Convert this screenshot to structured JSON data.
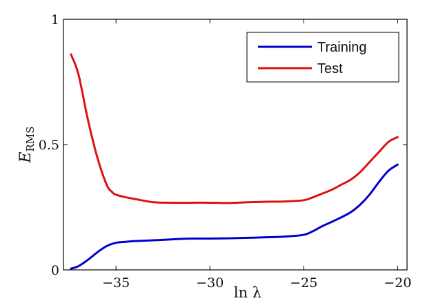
{
  "chart_data": {
    "type": "line",
    "xlabel": "ln λ",
    "ylabel": {
      "main": "E",
      "sub": "RMS"
    },
    "xlim": [
      -37.8,
      -19.5
    ],
    "ylim": [
      0,
      1
    ],
    "xticks": [
      -35,
      -30,
      -25,
      -20
    ],
    "xtick_labels": [
      "−35",
      "−30",
      "−25",
      "−20"
    ],
    "yticks": [
      0,
      0.5,
      1
    ],
    "ytick_labels": [
      "0",
      "0.5",
      "1"
    ],
    "grid": false,
    "legend_position": "top-right",
    "series": [
      {
        "name": "Training",
        "color": "#0000cc",
        "x": [
          -37.4,
          -37.0,
          -36.5,
          -36.0,
          -35.5,
          -35.0,
          -34.5,
          -34.0,
          -33.0,
          -32.0,
          -31.0,
          -30.0,
          -29.0,
          -28.0,
          -27.0,
          -26.0,
          -25.0,
          -24.5,
          -24.0,
          -23.5,
          -23.0,
          -22.5,
          -22.0,
          -21.5,
          -21.0,
          -20.5,
          -20.0
        ],
        "y": [
          0.005,
          0.015,
          0.04,
          0.07,
          0.095,
          0.108,
          0.112,
          0.115,
          0.118,
          0.122,
          0.125,
          0.125,
          0.126,
          0.128,
          0.13,
          0.133,
          0.14,
          0.155,
          0.175,
          0.192,
          0.21,
          0.23,
          0.26,
          0.3,
          0.35,
          0.395,
          0.42
        ]
      },
      {
        "name": "Test",
        "color": "#dd1111",
        "x": [
          -37.4,
          -37.0,
          -36.5,
          -36.0,
          -35.5,
          -35.2,
          -35.0,
          -34.5,
          -34.0,
          -33.0,
          -32.0,
          -31.0,
          -30.0,
          -29.0,
          -28.0,
          -27.0,
          -26.0,
          -25.0,
          -24.5,
          -24.0,
          -23.5,
          -23.0,
          -22.5,
          -22.0,
          -21.5,
          -21.0,
          -20.5,
          -20.0
        ],
        "y": [
          0.86,
          0.78,
          0.6,
          0.45,
          0.34,
          0.31,
          0.3,
          0.29,
          0.283,
          0.27,
          0.268,
          0.268,
          0.268,
          0.267,
          0.27,
          0.272,
          0.273,
          0.278,
          0.29,
          0.305,
          0.32,
          0.34,
          0.36,
          0.39,
          0.43,
          0.47,
          0.51,
          0.53
        ]
      }
    ]
  }
}
